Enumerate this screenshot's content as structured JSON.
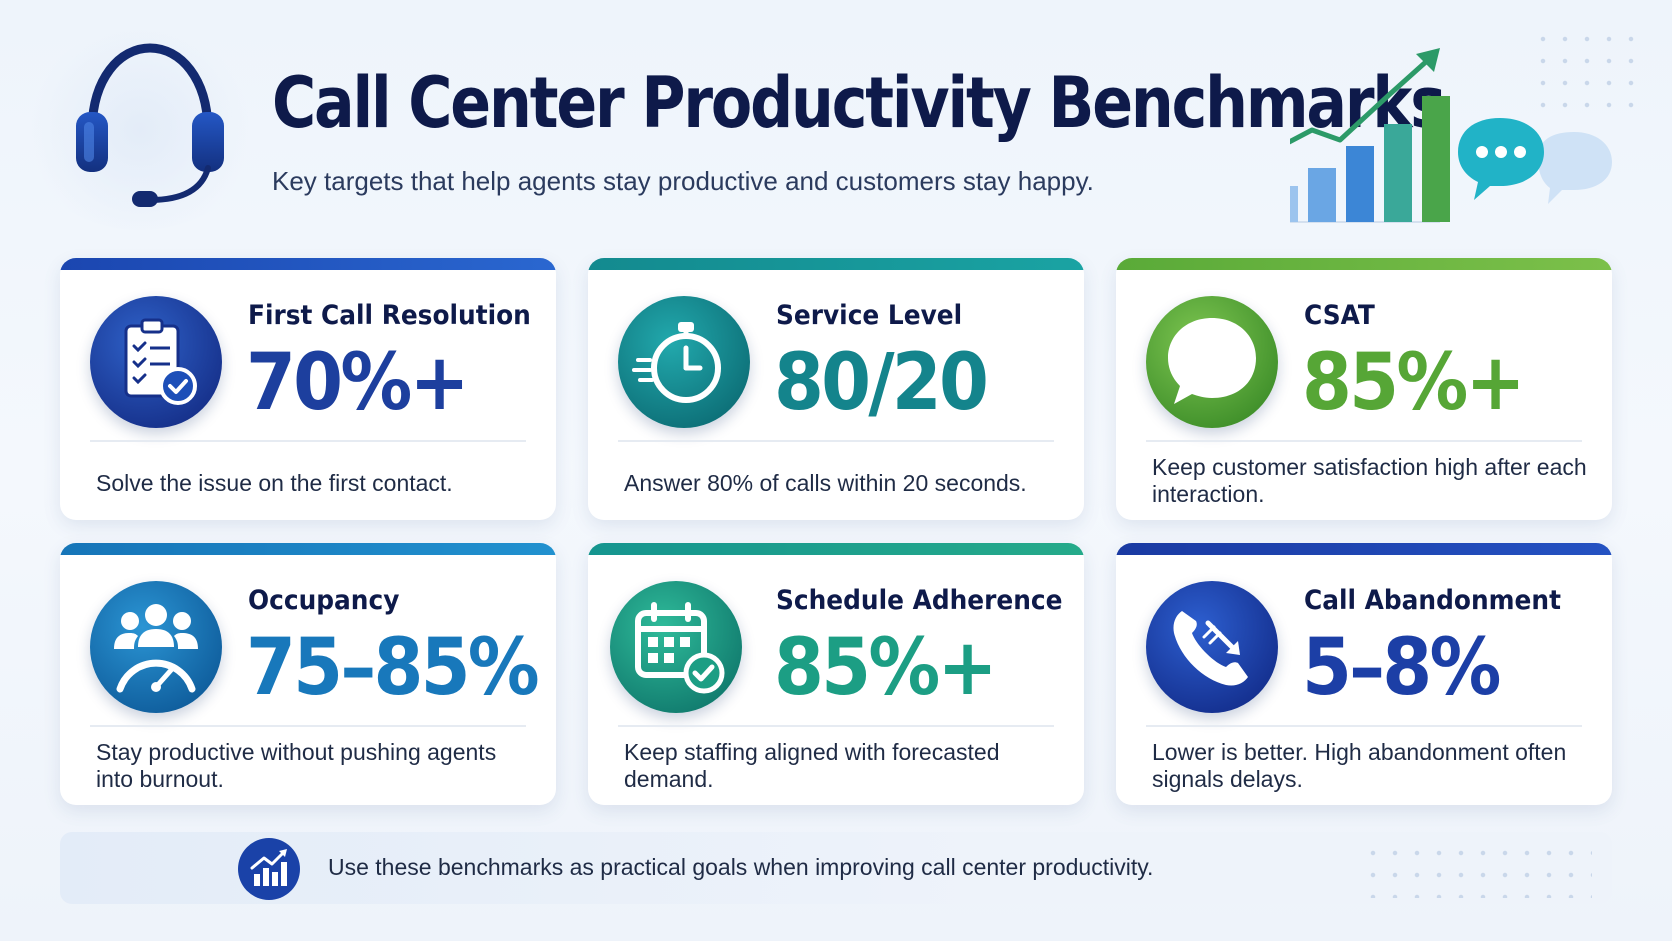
{
  "header": {
    "title": "Call Center Productivity Benchmarks",
    "subtitle": "Key targets that help agents stay productive and customers stay happy."
  },
  "colors": {
    "navy": "#0e1a4a",
    "blue": "#1d4fb8",
    "teal": "#15898f",
    "green": "#5aa83c",
    "sky": "#1b7fc0",
    "seagreen": "#1ea186"
  },
  "cards": [
    {
      "label": "First Call Resolution",
      "value": "70%+",
      "description": "Solve the issue on the first contact.",
      "icon": "clipboard-check-icon",
      "color": "#1d3f9e"
    },
    {
      "label": "Service Level",
      "value": "80/20",
      "description": "Answer 80% of calls within 20 seconds.",
      "icon": "stopwatch-icon",
      "color": "#14848c"
    },
    {
      "label": "CSAT",
      "value": "85%+",
      "description": "Keep customer satisfaction high after each interaction.",
      "icon": "speech-bubble-icon",
      "color": "#56a636"
    },
    {
      "label": "Occupancy",
      "value": "75–85%",
      "description": "Stay productive without pushing agents into burnout.",
      "icon": "team-gauge-icon",
      "color": "#1878bb"
    },
    {
      "label": "Schedule Adherence",
      "value": "85%+",
      "description": "Keep staffing aligned with forecasted demand.",
      "icon": "calendar-check-icon",
      "color": "#1c9e84"
    },
    {
      "label": "Call Abandonment",
      "value": "5–8%",
      "description": "Lower is better. High abandonment often signals delays.",
      "icon": "phone-missed-icon",
      "color": "#1c3fa6"
    }
  ],
  "footer": {
    "text": "Use these benchmarks as practical goals when improving call center productivity.",
    "icon": "bar-chart-icon"
  }
}
